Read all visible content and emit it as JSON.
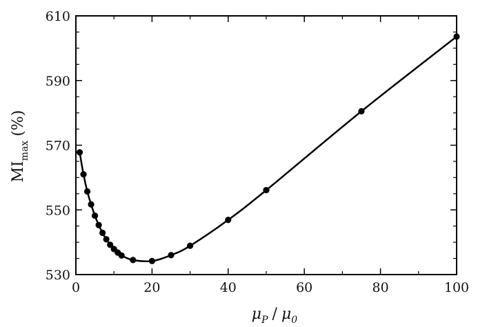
{
  "chart_data": {
    "type": "line",
    "xlim": [
      0,
      100
    ],
    "ylim": [
      530,
      610
    ],
    "grid": false,
    "x_ticks": [
      0,
      20,
      40,
      60,
      80,
      100
    ],
    "y_ticks": [
      530,
      550,
      570,
      590,
      610
    ],
    "x_tick_labels": [
      "0",
      "20",
      "40",
      "60",
      "80",
      "100"
    ],
    "y_tick_labels": [
      "530",
      "550",
      "570",
      "590",
      "610"
    ],
    "xlabel": {
      "mu": "μ",
      "sub1": "P",
      "slash": "/",
      "sub2": "0"
    },
    "ylabel": {
      "main": "MI",
      "sub": "max",
      "unit": "(%)"
    },
    "series": [
      {
        "x": [
          1,
          2,
          3,
          4,
          5,
          6,
          7,
          8,
          9,
          10,
          11,
          12,
          15,
          20,
          25,
          30,
          40,
          50,
          75,
          100
        ],
        "y": [
          567.8,
          561.0,
          555.7,
          551.7,
          548.2,
          545.3,
          542.9,
          540.9,
          539.2,
          537.9,
          536.8,
          535.9,
          534.5,
          534.2,
          536.0,
          538.9,
          546.9,
          556.1,
          580.5,
          603.6
        ]
      }
    ]
  }
}
